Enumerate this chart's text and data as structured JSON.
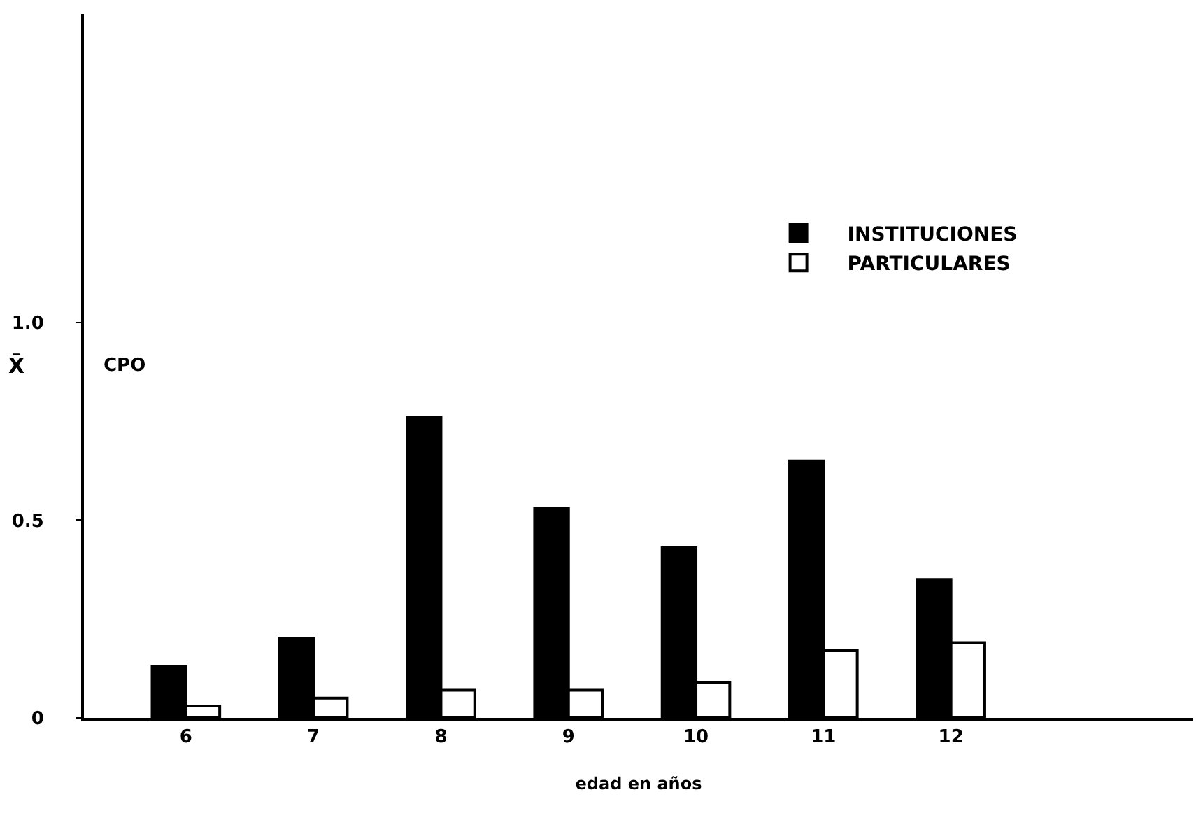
{
  "chart_data": {
    "type": "bar",
    "xlabel": "edad en años",
    "ylabel": "X̄",
    "annotations": [
      "CPO"
    ],
    "categories": [
      "6",
      "7",
      "8",
      "9",
      "10",
      "11",
      "12"
    ],
    "series": [
      {
        "name": "INSTITUCIONES",
        "color": "#000000",
        "values": [
          0.13,
          0.2,
          0.76,
          0.53,
          0.43,
          0.65,
          0.35
        ]
      },
      {
        "name": "PARTICULARES",
        "color": "#ffffff",
        "values": [
          0.03,
          0.05,
          0.07,
          0.07,
          0.09,
          0.17,
          0.19
        ]
      }
    ],
    "ylim": [
      0,
      1.78
    ],
    "yticks": [
      0,
      0.5,
      {
        "value": 1,
        "label": "1.0"
      }
    ],
    "grid": false,
    "legend": "top right"
  }
}
